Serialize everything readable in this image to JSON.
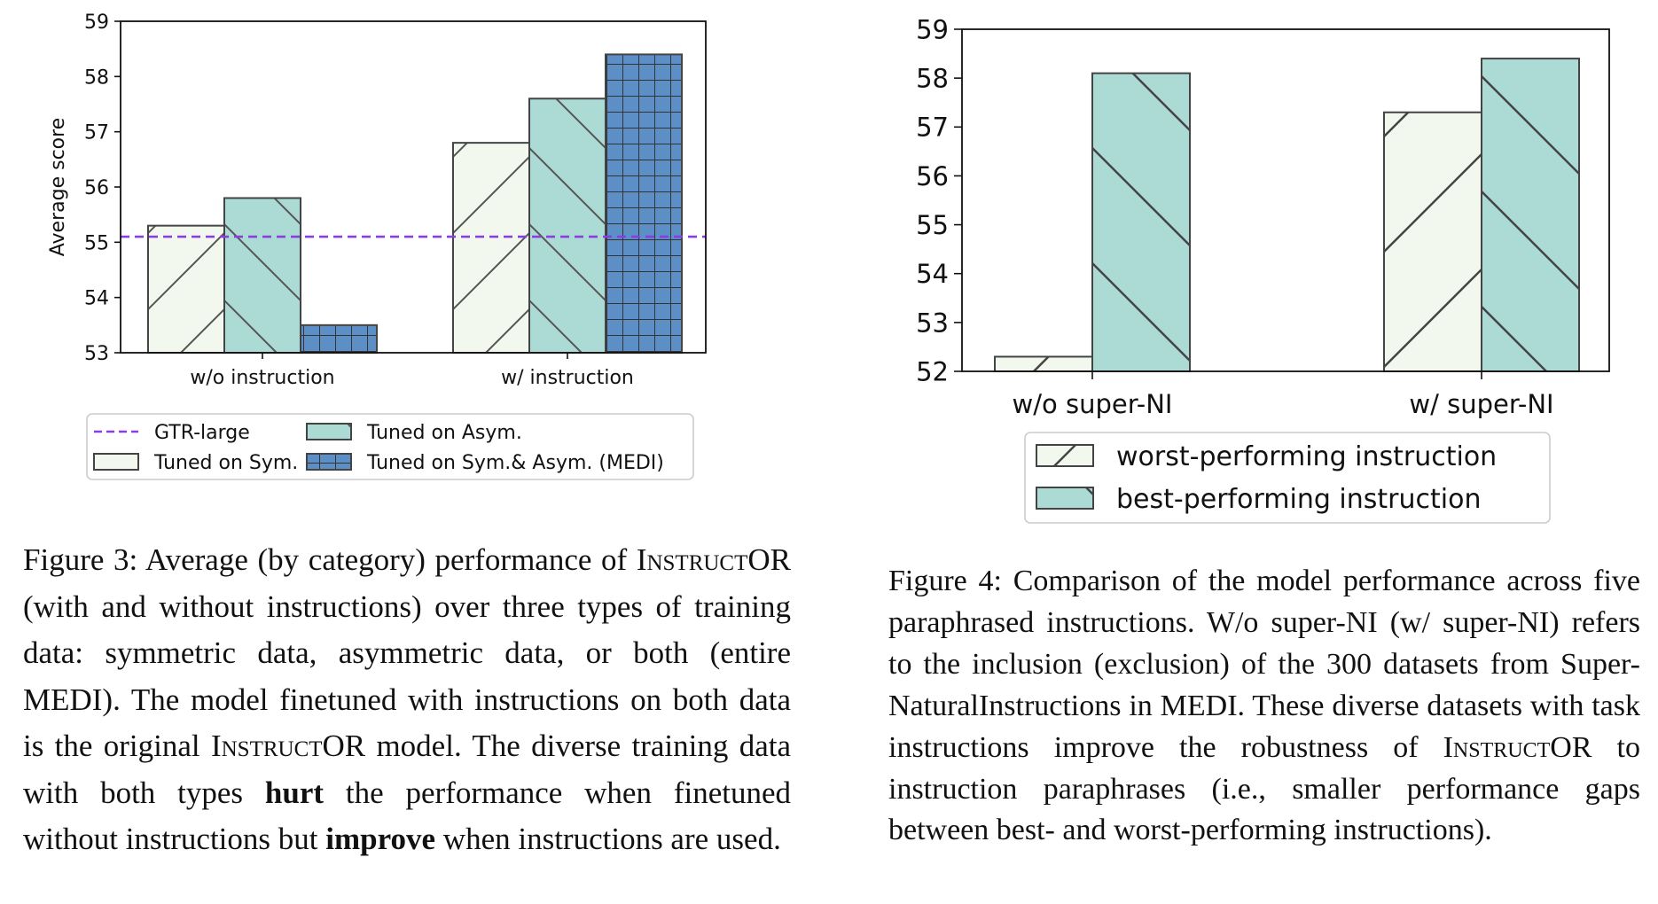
{
  "chart_data": [
    {
      "id": "figure3_chart",
      "type": "bar",
      "ylabel": "Average score",
      "xlabel": "",
      "ylim": [
        53,
        59
      ],
      "yticks": [
        53,
        54,
        55,
        56,
        57,
        58,
        59
      ],
      "categories": [
        "w/o instruction",
        "w/ instruction"
      ],
      "series": [
        {
          "name": "Tuned on Sym.",
          "values": [
            55.3,
            56.8
          ],
          "color": "#f3f8ef",
          "hatch": "forward-diagonal"
        },
        {
          "name": "Tuned on Asym.",
          "values": [
            55.8,
            57.6
          ],
          "color": "#acdad5",
          "hatch": "back-diagonal"
        },
        {
          "name": "Tuned on Sym.& Asym. (MEDI)",
          "values": [
            53.5,
            58.4
          ],
          "color": "#5b8fc6",
          "hatch": "grid"
        }
      ],
      "reference_line": {
        "name": "GTR-large",
        "value": 55.1,
        "color": "#8a3ee0",
        "style": "dashed"
      },
      "legend": {
        "position": "bottom"
      },
      "grid": false
    },
    {
      "id": "figure4_chart",
      "type": "bar",
      "ylabel": "",
      "xlabel": "",
      "ylim": [
        52,
        59
      ],
      "yticks": [
        52,
        53,
        54,
        55,
        56,
        57,
        58,
        59
      ],
      "categories": [
        "w/o super-NI",
        "w/ super-NI"
      ],
      "series": [
        {
          "name": "worst-performing instruction",
          "values": [
            52.3,
            57.3
          ],
          "color": "#f3f8ef",
          "hatch": "forward-diagonal"
        },
        {
          "name": "best-performing instruction",
          "values": [
            58.1,
            58.4
          ],
          "color": "#acdad5",
          "hatch": "back-diagonal"
        }
      ],
      "legend": {
        "position": "bottom"
      },
      "grid": false
    }
  ],
  "captions": {
    "fig3": {
      "p1": "Figure 3: Average (by category) performance of ",
      "sc1": "Instruct",
      "p2": "OR (with and without instructions) over three types of training data: symmetric data, asymmetric data, or both (entire MEDI). The model finetuned with instructions on both data is the original ",
      "sc2": "Instruct",
      "p3": "OR model. The diverse training data with both types ",
      "b1": "hurt",
      "p4": " the performance when finetuned without instructions but ",
      "b2": "improve",
      "p5": " when instructions are used."
    },
    "fig4": {
      "p1": "Figure 4: Comparison of the model performance across five paraphrased instructions. W/o super-NI (w/ super-NI) refers to the inclusion (exclusion) of the 300 datasets from Super-NaturalInstructions in MEDI. These diverse datasets with task instructions improve the robustness of ",
      "sc1": "Instruct",
      "p2": "OR to instruction paraphrases (i.e., smaller performance gaps between best- and worst-performing instructions)."
    }
  }
}
